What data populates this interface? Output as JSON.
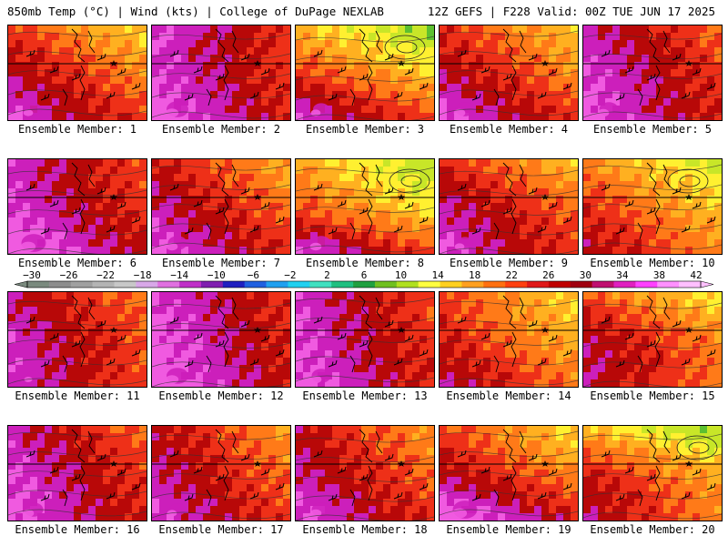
{
  "header": {
    "left": "850mb Temp (°C) | Wind (kts) | College of DuPage NEXLAB",
    "right": "12Z GEFS | F228 Valid: 00Z TUE JUN 17 2025"
  },
  "members": [
    "Ensemble Member: 1",
    "Ensemble Member: 2",
    "Ensemble Member: 3",
    "Ensemble Member: 4",
    "Ensemble Member: 5",
    "Ensemble Member: 6",
    "Ensemble Member: 7",
    "Ensemble Member: 8",
    "Ensemble Member: 9",
    "Ensemble Member: 10",
    "Ensemble Member: 11",
    "Ensemble Member: 12",
    "Ensemble Member: 13",
    "Ensemble Member: 14",
    "Ensemble Member: 15",
    "Ensemble Member: 16",
    "Ensemble Member: 17",
    "Ensemble Member: 18",
    "Ensemble Member: 19",
    "Ensemble Member: 20"
  ],
  "colorbar": {
    "labels": [
      "-30",
      "-26",
      "-22",
      "-18",
      "-14",
      "-10",
      "-6",
      "-2",
      "2",
      "6",
      "10",
      "14",
      "18",
      "22",
      "26",
      "30",
      "34",
      "38",
      "42"
    ],
    "colors": [
      "#7a8a7e",
      "#8d8d8d",
      "#a0a0a0",
      "#b4b4b4",
      "#c8c8c8",
      "#d8a8e8",
      "#e070e0",
      "#c030c8",
      "#8020b0",
      "#2020c0",
      "#2060e0",
      "#20a0f0",
      "#20d0f0",
      "#40e0c0",
      "#20c080",
      "#20a040",
      "#70c020",
      "#b0e020",
      "#ffff40",
      "#ffd020",
      "#ffa020",
      "#ff7010",
      "#ff4010",
      "#e01818",
      "#c00000",
      "#a00010",
      "#c01070",
      "#e020c0",
      "#ff40ff",
      "#ff90ff",
      "#ffc0ff"
    ]
  },
  "palette": {
    "green": "#5cc030",
    "lime": "#c8e628",
    "yellow": "#fff030",
    "orange": "#ffb020",
    "darkorange": "#ff7a18",
    "red": "#ee3018",
    "darkred": "#b80808",
    "magenta": "#cc1fbb",
    "pink": "#f05ae0"
  },
  "temps": [
    [
      0.55,
      0.35,
      0.2
    ],
    [
      0.2,
      0.2,
      0.1
    ],
    [
      0.8,
      0.5,
      0.2
    ],
    [
      0.5,
      0.35,
      0.15
    ],
    [
      0.3,
      0.2,
      0.15
    ],
    [
      0.25,
      0.2,
      0.05
    ],
    [
      0.45,
      0.3,
      0.15
    ],
    [
      0.75,
      0.55,
      0.15
    ],
    [
      0.5,
      0.3,
      0.2
    ],
    [
      0.7,
      0.5,
      0.35
    ],
    [
      0.35,
      0.25,
      0.25
    ],
    [
      0.2,
      0.15,
      0.1
    ],
    [
      0.25,
      0.2,
      0.15
    ],
    [
      0.55,
      0.45,
      0.3
    ],
    [
      0.6,
      0.35,
      0.35
    ],
    [
      0.3,
      0.2,
      0.15
    ],
    [
      0.4,
      0.3,
      0.2
    ],
    [
      0.4,
      0.3,
      0.15
    ],
    [
      0.55,
      0.35,
      0.05
    ],
    [
      0.8,
      0.45,
      0.35
    ]
  ]
}
